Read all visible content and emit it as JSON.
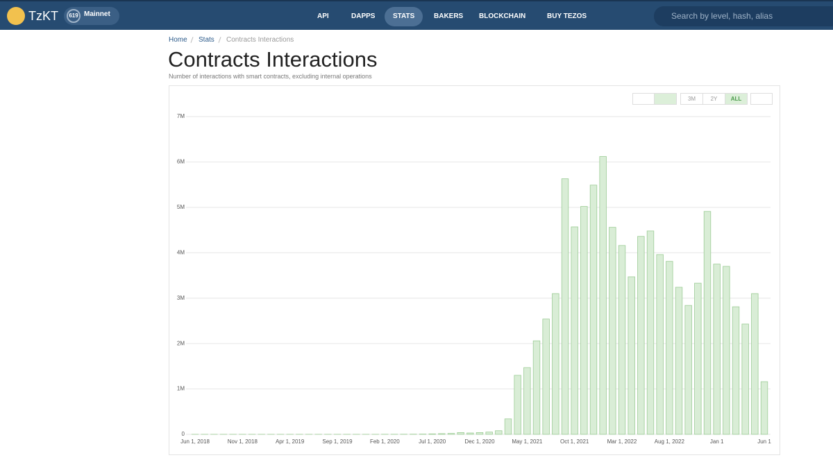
{
  "header": {
    "brand": "TzKT",
    "cycle": "619",
    "network": "Mainnet",
    "nav": [
      "API",
      "DAPPS",
      "STATS",
      "BAKERS",
      "BLOCKCHAIN",
      "BUY TEZOS"
    ],
    "search_placeholder": "Search by level, hash, alias"
  },
  "breadcrumb": [
    "Home",
    "Stats",
    "Contracts Interactions"
  ],
  "page": {
    "title": "Contracts Interactions",
    "subtitle": "Number of interactions with smart contracts, excluding internal operations"
  },
  "toolbar": {
    "ranges": [
      "3M",
      "2Y",
      "ALL"
    ],
    "active_range": "ALL"
  },
  "chart_data": {
    "type": "bar",
    "color": "#d9edd6",
    "edge": "#9ccc95",
    "categories": [
      "Jun 1, 2018",
      null,
      null,
      null,
      null,
      "Nov 1, 2018",
      null,
      null,
      null,
      null,
      "Apr 1, 2019",
      null,
      null,
      null,
      null,
      "Sep 1, 2019",
      null,
      null,
      null,
      null,
      "Feb 1, 2020",
      null,
      null,
      null,
      null,
      "Jul 1, 2020",
      null,
      null,
      null,
      null,
      "Dec 1, 2020",
      null,
      null,
      null,
      null,
      "May 1, 2021",
      null,
      null,
      null,
      null,
      "Oct 1, 2021",
      null,
      null,
      null,
      null,
      "Mar 1, 2022",
      null,
      null,
      null,
      null,
      "Aug 1, 2022",
      null,
      null,
      null,
      null,
      "Jan 1",
      null,
      null,
      null,
      null,
      "Jun 1"
    ],
    "values": [
      1000,
      1000,
      1000,
      1000,
      1000,
      1000,
      1000,
      1000,
      1000,
      1000,
      1000,
      1000,
      1000,
      1000,
      1000,
      1000,
      1000,
      1000,
      1000,
      1000,
      2000,
      2000,
      3000,
      4000,
      6000,
      10000,
      15000,
      20000,
      40000,
      30000,
      40000,
      50000,
      80000,
      340000,
      1300000,
      1470000,
      2060000,
      2540000,
      3100000,
      5630000,
      4570000,
      5020000,
      5490000,
      6120000,
      4560000,
      4160000,
      3470000,
      4360000,
      4480000,
      3960000,
      3810000,
      3240000,
      2840000,
      3330000,
      4910000,
      3750000,
      3700000,
      2810000,
      2430000,
      3100000,
      1160000
    ],
    "ylim": [
      0,
      7000000
    ],
    "yticks": [
      0,
      {
        "value": 1000000,
        "label": "1M"
      },
      {
        "value": 2000000,
        "label": "2M"
      },
      {
        "value": 3000000,
        "label": "3M"
      },
      {
        "value": 4000000,
        "label": "4M"
      },
      {
        "value": 5000000,
        "label": "5M"
      },
      {
        "value": 6000000,
        "label": "6M"
      },
      {
        "value": 7000000,
        "label": "7M"
      }
    ],
    "grid": true
  }
}
